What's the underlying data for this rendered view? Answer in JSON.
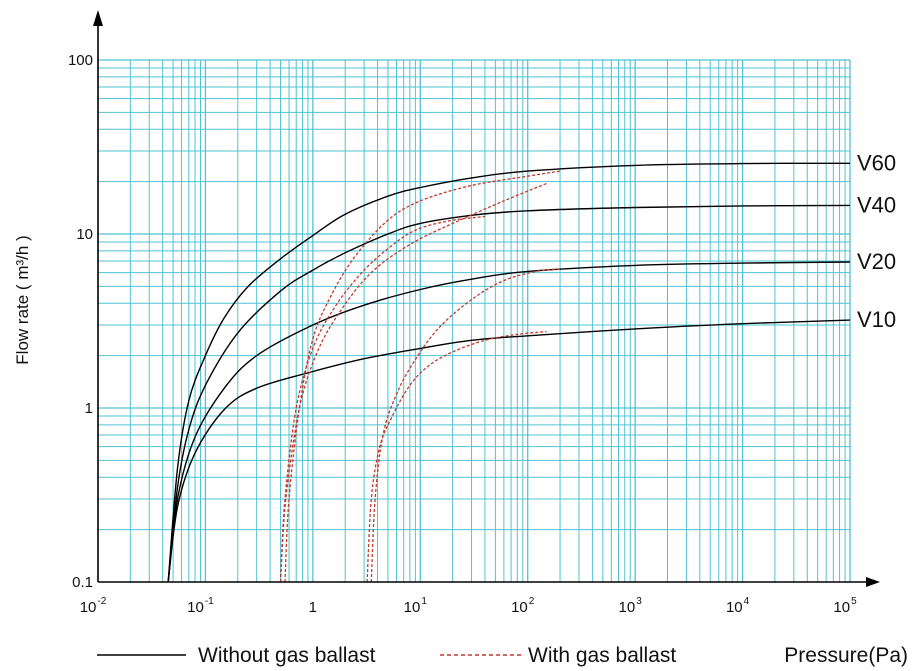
{
  "chart_data": {
    "type": "line",
    "title": "",
    "xlabel": "Pressure(Pa)",
    "ylabel": "Flow rate ( m³/h )",
    "x_scale": "log",
    "y_scale": "log",
    "xlim": [
      0.01,
      100000
    ],
    "ylim": [
      0.1,
      100
    ],
    "grid": true,
    "colors": {
      "grid": "#4fc3d3",
      "solid": "#000000",
      "dashed": "#c0392b",
      "axis": "#000000"
    },
    "x_ticks": [
      {
        "base": "10",
        "exp": "-2"
      },
      {
        "base": "10",
        "exp": "-1"
      },
      {
        "base": "1",
        "exp": ""
      },
      {
        "base": "10",
        "exp": "1"
      },
      {
        "base": "10",
        "exp": "2"
      },
      {
        "base": "10",
        "exp": "3"
      },
      {
        "base": "10",
        "exp": "4"
      },
      {
        "base": "10",
        "exp": "5"
      }
    ],
    "y_ticks": [
      "0.1",
      "1",
      "10",
      "100"
    ],
    "legend": {
      "placement": "bottom",
      "solid_label": "Without gas ballast",
      "dashed_label": "With gas ballast"
    },
    "series": [
      {
        "name": "V60",
        "style": "solid",
        "points": [
          [
            0.045,
            0.1
          ],
          [
            0.055,
            0.45
          ],
          [
            0.07,
            1.1
          ],
          [
            0.1,
            2.0
          ],
          [
            0.15,
            3.3
          ],
          [
            0.25,
            5.0
          ],
          [
            0.5,
            7.2
          ],
          [
            1,
            9.8
          ],
          [
            2,
            13.0
          ],
          [
            5,
            16.5
          ],
          [
            10,
            18.5
          ],
          [
            30,
            21.0
          ],
          [
            100,
            23.0
          ],
          [
            1000,
            24.8
          ],
          [
            10000,
            25.4
          ],
          [
            100000,
            25.5
          ]
        ]
      },
      {
        "name": "V40",
        "style": "solid",
        "points": [
          [
            0.045,
            0.1
          ],
          [
            0.055,
            0.35
          ],
          [
            0.07,
            0.75
          ],
          [
            0.1,
            1.35
          ],
          [
            0.2,
            2.7
          ],
          [
            0.5,
            4.7
          ],
          [
            1,
            6.2
          ],
          [
            2,
            7.8
          ],
          [
            5,
            10.0
          ],
          [
            10,
            11.5
          ],
          [
            30,
            12.8
          ],
          [
            100,
            13.6
          ],
          [
            1000,
            14.2
          ],
          [
            10000,
            14.5
          ],
          [
            100000,
            14.6
          ]
        ]
      },
      {
        "name": "V20",
        "style": "solid",
        "points": [
          [
            0.045,
            0.1
          ],
          [
            0.055,
            0.3
          ],
          [
            0.08,
            0.68
          ],
          [
            0.15,
            1.3
          ],
          [
            0.3,
            2.0
          ],
          [
            1,
            3.0
          ],
          [
            3,
            3.9
          ],
          [
            10,
            4.8
          ],
          [
            30,
            5.5
          ],
          [
            100,
            6.1
          ],
          [
            1000,
            6.6
          ],
          [
            10000,
            6.8
          ],
          [
            100000,
            6.9
          ]
        ]
      },
      {
        "name": "V10",
        "style": "solid",
        "points": [
          [
            0.045,
            0.1
          ],
          [
            0.055,
            0.27
          ],
          [
            0.08,
            0.55
          ],
          [
            0.15,
            0.98
          ],
          [
            0.3,
            1.3
          ],
          [
            1,
            1.62
          ],
          [
            3,
            1.92
          ],
          [
            10,
            2.2
          ],
          [
            30,
            2.45
          ],
          [
            100,
            2.6
          ],
          [
            1000,
            2.85
          ],
          [
            10000,
            3.05
          ],
          [
            100000,
            3.2
          ]
        ]
      },
      {
        "name": "",
        "style": "dashed",
        "points": [
          [
            0.55,
            0.1
          ],
          [
            0.6,
            0.3
          ],
          [
            0.75,
            1.0
          ],
          [
            1.0,
            2.5
          ],
          [
            1.5,
            4.5
          ],
          [
            2.5,
            7.5
          ],
          [
            5,
            12.0
          ],
          [
            10,
            15.5
          ],
          [
            30,
            19.0
          ],
          [
            100,
            21.5
          ],
          [
            200,
            23.0
          ]
        ]
      },
      {
        "name": "",
        "style": "dashed",
        "points": [
          [
            0.5,
            0.1
          ],
          [
            0.55,
            0.3
          ],
          [
            0.7,
            1.0
          ],
          [
            1.0,
            2.2
          ],
          [
            1.6,
            3.8
          ],
          [
            3,
            6.2
          ],
          [
            6,
            9.0
          ],
          [
            10,
            10.8
          ],
          [
            20,
            12.0
          ],
          [
            40,
            12.6
          ]
        ]
      },
      {
        "name": "",
        "style": "dashed",
        "points": [
          [
            0.5,
            0.1
          ],
          [
            0.56,
            0.3
          ],
          [
            0.75,
            1.0
          ],
          [
            1.1,
            2.1
          ],
          [
            1.8,
            3.6
          ],
          [
            3.5,
            6.0
          ],
          [
            8,
            8.7
          ],
          [
            20,
            11.5
          ],
          [
            60,
            15.5
          ],
          [
            150,
            19.5
          ]
        ]
      },
      {
        "name": "",
        "style": "dashed",
        "points": [
          [
            3.5,
            0.1
          ],
          [
            3.8,
            0.3
          ],
          [
            4.5,
            0.7
          ],
          [
            6,
            1.2
          ],
          [
            9,
            1.9
          ],
          [
            15,
            2.9
          ],
          [
            30,
            4.2
          ],
          [
            60,
            5.4
          ],
          [
            120,
            6.1
          ],
          [
            200,
            6.3
          ]
        ]
      },
      {
        "name": "",
        "style": "dashed",
        "points": [
          [
            3.2,
            0.1
          ],
          [
            3.5,
            0.3
          ],
          [
            4.2,
            0.6
          ],
          [
            5.5,
            0.9
          ],
          [
            8,
            1.35
          ],
          [
            12,
            1.75
          ],
          [
            20,
            2.1
          ],
          [
            40,
            2.45
          ],
          [
            80,
            2.65
          ],
          [
            150,
            2.75
          ]
        ]
      }
    ]
  }
}
